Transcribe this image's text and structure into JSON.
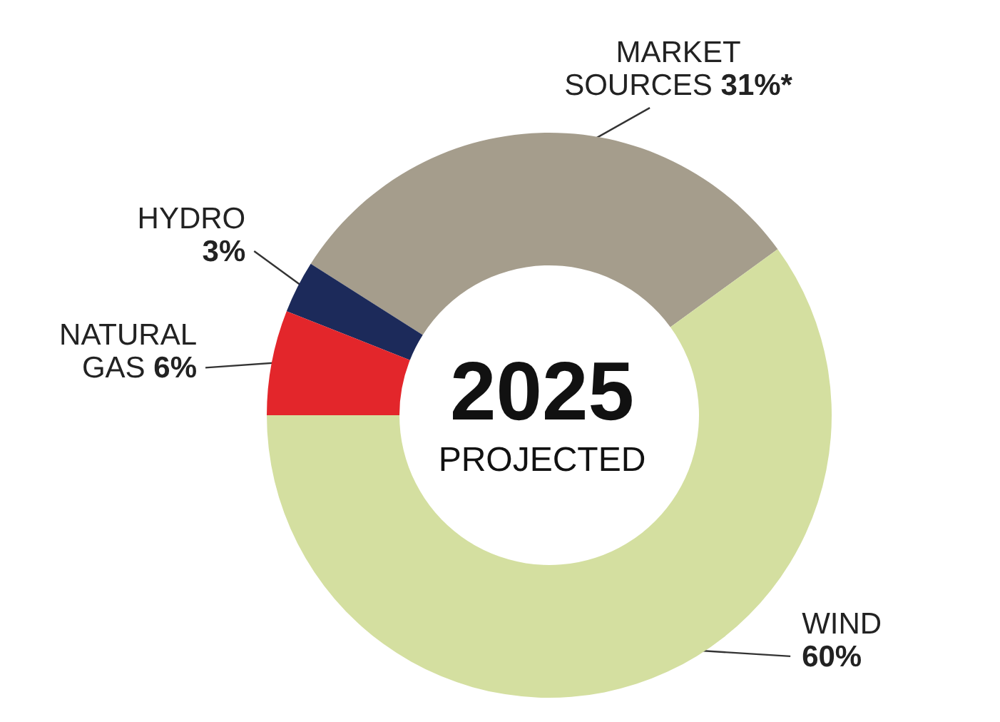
{
  "chart_data": {
    "type": "donut",
    "title": "2025",
    "subtitle": "PROJECTED",
    "categories": [
      "MARKET SOURCES",
      "HYDRO",
      "NATURAL GAS",
      "WIND"
    ],
    "values": [
      31,
      3,
      6,
      60
    ],
    "value_labels": [
      "31%*",
      "3%",
      "6%",
      "60%"
    ],
    "colors": [
      "#a59d8c",
      "#1c2a5a",
      "#e3262b",
      "#d4dfa0"
    ],
    "legend": false
  }
}
